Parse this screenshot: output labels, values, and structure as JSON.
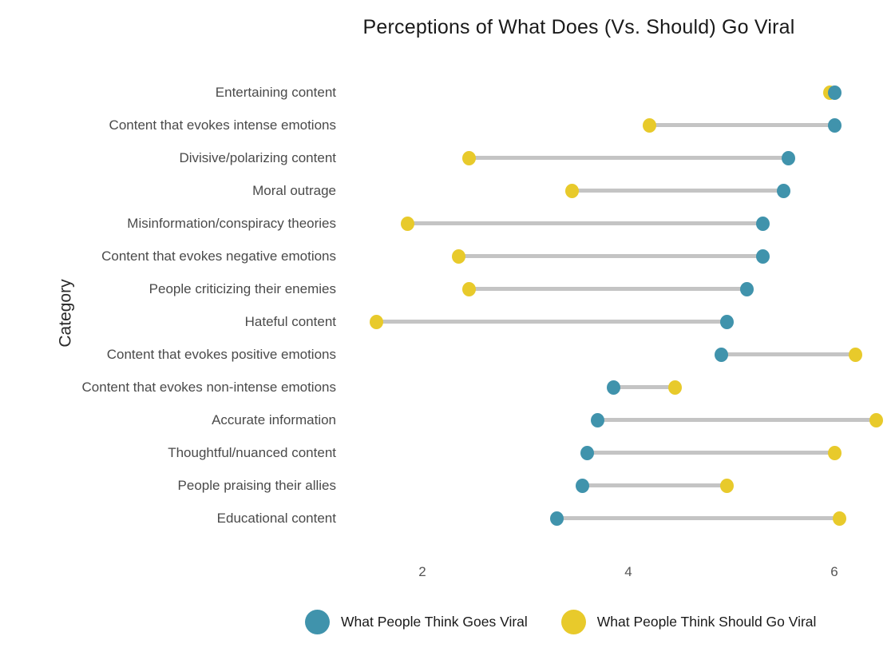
{
  "title": "Perceptions of What Does (Vs. Should) Go Viral",
  "y_axis_label": "Category",
  "colors": {
    "goes_viral": "#4093ac",
    "should_go_viral": "#e8ca2b",
    "connector": "#c4c4c4",
    "title_text": "#1a1a1a",
    "category_text": "#4a4a4a",
    "tick_text": "#555555"
  },
  "legend": {
    "items": [
      {
        "label": "What People Think Goes Viral",
        "color": "#4093ac"
      },
      {
        "label": "What People Think Should Go Viral",
        "color": "#e8ca2b"
      }
    ]
  },
  "chart_data": {
    "type": "dumbbell",
    "orientation": "horizontal",
    "title": "Perceptions of What Does (Vs. Should) Go Viral",
    "xlabel": "",
    "ylabel": "Category",
    "x_ticks": [
      2,
      4,
      6
    ],
    "xlim": [
      1.3,
      6.6
    ],
    "grid": false,
    "legend_position": "bottom",
    "categories": [
      "Entertaining content",
      "Content that evokes intense emotions",
      "Divisive/polarizing content",
      "Moral outrage",
      "Misinformation/conspiracy theories",
      "Content that evokes negative emotions",
      "People criticizing their enemies",
      "Hateful content",
      "Content that evokes positive emotions",
      "Content that evokes non-intense emotions",
      "Accurate information",
      "Thoughtful/nuanced content",
      "People praising their allies",
      "Educational content"
    ],
    "series": [
      {
        "name": "What People Think Goes Viral",
        "color": "#4093ac",
        "values": [
          6.0,
          6.0,
          5.55,
          5.5,
          5.3,
          5.3,
          5.15,
          4.95,
          4.9,
          3.85,
          3.7,
          3.6,
          3.55,
          3.3
        ]
      },
      {
        "name": "What People Think Should Go Viral",
        "color": "#e8ca2b",
        "values": [
          5.95,
          4.2,
          2.45,
          3.45,
          1.85,
          2.35,
          2.45,
          1.55,
          6.2,
          4.45,
          6.4,
          6.0,
          4.95,
          6.05
        ]
      }
    ]
  }
}
